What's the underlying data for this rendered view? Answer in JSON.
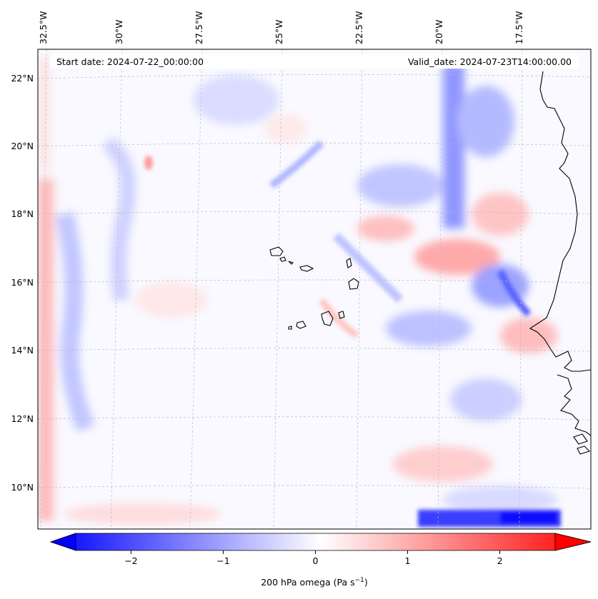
{
  "map": {
    "start_date": "Start date: 2024-07-22_00:00:00",
    "valid_date": "Valid_date: 2024-07-23T14:00:00.00",
    "lon_labels": [
      "32.5°W",
      "30°W",
      "27.5°W",
      "25°W",
      "22.5°W",
      "20°W",
      "17.5°W"
    ],
    "lat_labels": [
      "22°N",
      "20°N",
      "18°N",
      "16°N",
      "14°N",
      "12°N",
      "10°N"
    ],
    "field": "200 hPa omega"
  },
  "colorbar": {
    "label_main": "200 hPa omega (Pa s",
    "label_exp": "−1",
    "label_close": ")",
    "ticks": [
      "−2",
      "−1",
      "0",
      "1",
      "2"
    ],
    "tick_values": [
      -2,
      -1,
      0,
      1,
      2
    ],
    "range": [
      -2.6,
      2.6
    ],
    "cmap": "bwr",
    "colors": {
      "negative": "#0000ff",
      "zero": "#ffffff",
      "positive": "#ff0000"
    }
  },
  "colors": {
    "coastline": "#000000",
    "gridline": "#bbbbbb",
    "frame": "#000000"
  }
}
